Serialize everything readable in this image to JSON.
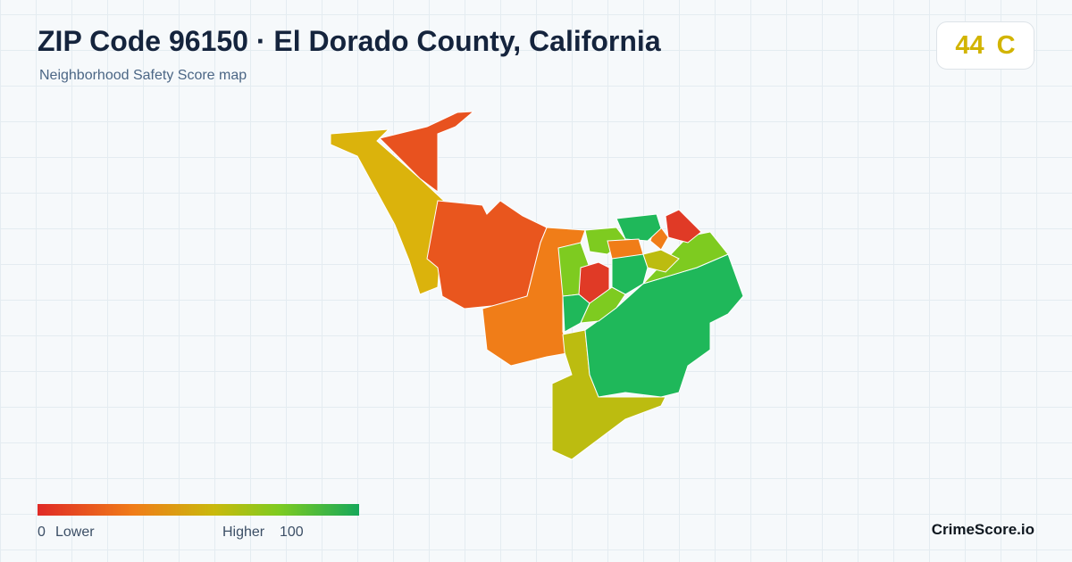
{
  "header": {
    "title": "ZIP Code 96150 · El Dorado County, California",
    "subtitle": "Neighborhood Safety Score map"
  },
  "score": {
    "value": "44",
    "grade": "C"
  },
  "legend": {
    "min": "0",
    "min_label": "Lower",
    "max_label": "Higher",
    "max": "100"
  },
  "brand": "CrimeScore.io"
}
